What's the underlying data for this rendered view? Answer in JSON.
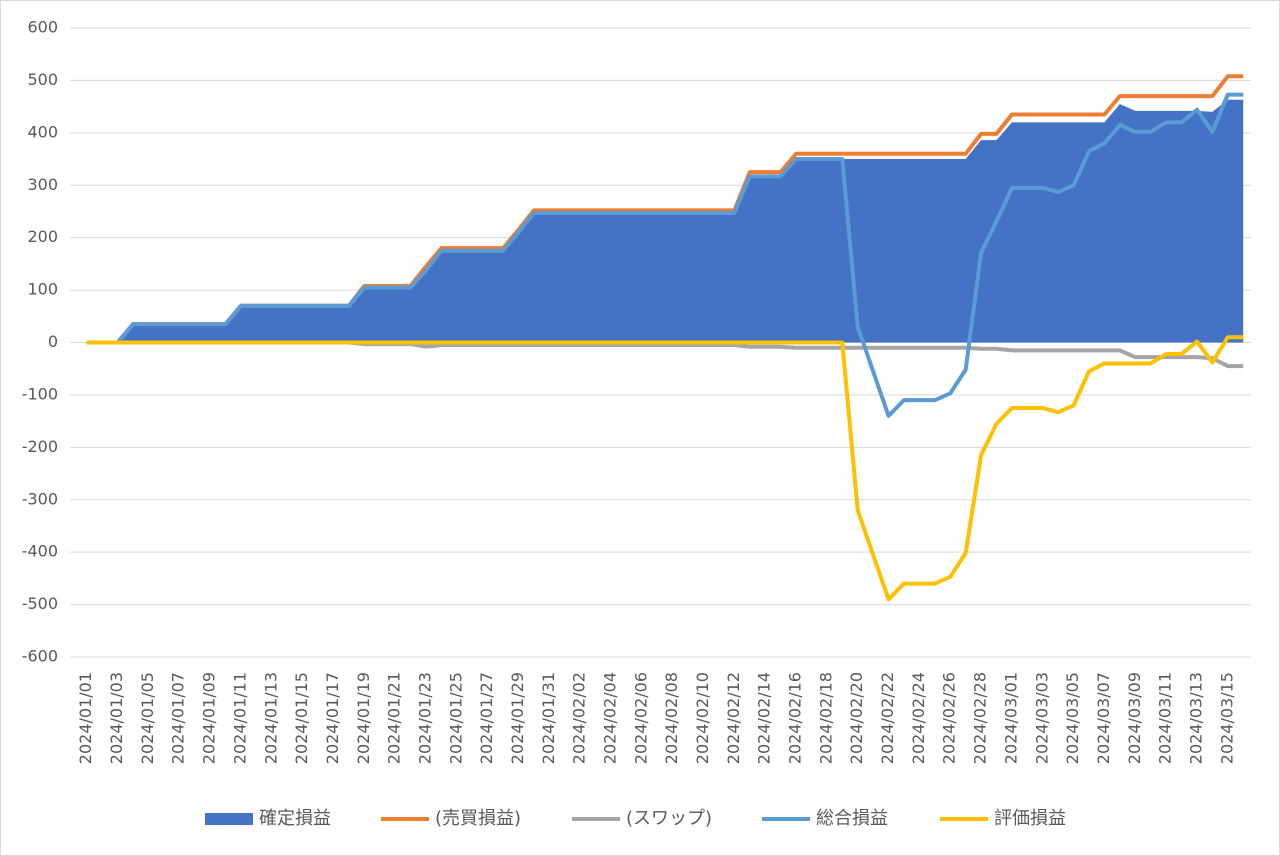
{
  "chart_data": {
    "type": "line",
    "categories": [
      "2024/01/01",
      null,
      "2024/01/03",
      null,
      "2024/01/05",
      null,
      "2024/01/07",
      null,
      "2024/01/09",
      null,
      "2024/01/11",
      null,
      "2024/01/13",
      null,
      "2024/01/15",
      null,
      "2024/01/17",
      null,
      "2024/01/19",
      null,
      "2024/01/21",
      null,
      "2024/01/23",
      null,
      "2024/01/25",
      null,
      "2024/01/27",
      null,
      "2024/01/29",
      null,
      "2024/01/31",
      null,
      "2024/02/02",
      null,
      "2024/02/04",
      null,
      "2024/02/06",
      null,
      "2024/02/08",
      null,
      "2024/02/10",
      null,
      "2024/02/12",
      null,
      "2024/02/14",
      null,
      "2024/02/16",
      null,
      "2024/02/18",
      null,
      "2024/02/20",
      null,
      "2024/02/22",
      null,
      "2024/02/24",
      null,
      "2024/02/26",
      null,
      "2024/02/28",
      null,
      "2024/03/01",
      null,
      "2024/03/03",
      null,
      "2024/03/05",
      null,
      "2024/03/07",
      null,
      "2024/03/09",
      null,
      "2024/03/11",
      null,
      "2024/03/13",
      null,
      "2024/03/15",
      null
    ],
    "series": [
      {
        "name": "確定損益",
        "type": "area",
        "color": "#4472c4",
        "values": [
          0,
          0,
          0,
          35,
          35,
          35,
          35,
          35,
          35,
          35,
          70,
          70,
          70,
          70,
          70,
          70,
          70,
          70,
          105,
          105,
          105,
          105,
          137,
          175,
          175,
          175,
          175,
          175,
          210,
          247,
          247,
          247,
          247,
          247,
          247,
          247,
          247,
          247,
          247,
          247,
          247,
          247,
          247,
          317,
          317,
          317,
          350,
          350,
          350,
          350,
          350,
          350,
          350,
          350,
          350,
          350,
          350,
          350,
          386,
          386,
          420,
          420,
          420,
          420,
          420,
          420,
          420,
          455,
          442,
          442,
          442,
          442,
          442,
          440,
          463,
          463
        ]
      },
      {
        "name": "(売買損益)",
        "type": "line",
        "color": "#ed7d31",
        "values": [
          0,
          0,
          0,
          35,
          35,
          35,
          35,
          35,
          35,
          35,
          70,
          70,
          70,
          70,
          70,
          70,
          70,
          70,
          108,
          108,
          108,
          108,
          145,
          180,
          180,
          180,
          180,
          180,
          215,
          252,
          252,
          252,
          252,
          252,
          252,
          252,
          252,
          252,
          252,
          252,
          252,
          252,
          252,
          325,
          325,
          325,
          360,
          360,
          360,
          360,
          360,
          360,
          360,
          360,
          360,
          360,
          360,
          360,
          398,
          398,
          435,
          435,
          435,
          435,
          435,
          435,
          435,
          470,
          470,
          470,
          470,
          470,
          470,
          470,
          508,
          508
        ]
      },
      {
        "name": "(スワップ)",
        "type": "line",
        "color": "#a5a5a5",
        "values": [
          0,
          0,
          0,
          0,
          0,
          0,
          0,
          0,
          0,
          0,
          0,
          0,
          0,
          0,
          0,
          0,
          0,
          0,
          -3,
          -3,
          -3,
          -3,
          -8,
          -5,
          -5,
          -5,
          -5,
          -5,
          -5,
          -5,
          -5,
          -5,
          -5,
          -5,
          -5,
          -5,
          -5,
          -5,
          -5,
          -5,
          -5,
          -5,
          -5,
          -8,
          -8,
          -8,
          -10,
          -10,
          -10,
          -10,
          -10,
          -10,
          -10,
          -10,
          -10,
          -10,
          -10,
          -10,
          -12,
          -12,
          -15,
          -15,
          -15,
          -15,
          -15,
          -15,
          -15,
          -15,
          -28,
          -28,
          -28,
          -28,
          -28,
          -30,
          -45,
          -45
        ]
      },
      {
        "name": "総合損益",
        "type": "line",
        "color": "#5b9bd5",
        "values": [
          0,
          0,
          0,
          35,
          35,
          35,
          35,
          35,
          35,
          35,
          70,
          70,
          70,
          70,
          70,
          70,
          70,
          70,
          105,
          105,
          105,
          105,
          137,
          175,
          175,
          175,
          175,
          175,
          210,
          247,
          247,
          247,
          247,
          247,
          247,
          247,
          247,
          247,
          247,
          247,
          247,
          247,
          247,
          317,
          317,
          317,
          350,
          350,
          350,
          350,
          30,
          -55,
          -140,
          -110,
          -110,
          -110,
          -97,
          -52,
          171,
          231,
          295,
          295,
          295,
          287,
          300,
          365,
          380,
          415,
          402,
          402,
          420,
          420,
          444,
          402,
          473,
          473
        ]
      },
      {
        "name": "評価損益",
        "type": "line",
        "color": "#ffc000",
        "values": [
          0,
          0,
          0,
          0,
          0,
          0,
          0,
          0,
          0,
          0,
          0,
          0,
          0,
          0,
          0,
          0,
          0,
          0,
          0,
          0,
          0,
          0,
          0,
          0,
          0,
          0,
          0,
          0,
          0,
          0,
          0,
          0,
          0,
          0,
          0,
          0,
          0,
          0,
          0,
          0,
          0,
          0,
          0,
          0,
          0,
          0,
          0,
          0,
          0,
          0,
          -320,
          -405,
          -490,
          -460,
          -460,
          -460,
          -447,
          -402,
          -215,
          -155,
          -125,
          -125,
          -125,
          -133,
          -120,
          -55,
          -40,
          -40,
          -40,
          -40,
          -22,
          -22,
          2,
          -38,
          10,
          10
        ]
      }
    ],
    "ylim": [
      -600,
      600
    ],
    "yticks": [
      -600,
      -500,
      -400,
      -300,
      -200,
      -100,
      0,
      100,
      200,
      300,
      400,
      500,
      600
    ],
    "grid": true
  }
}
